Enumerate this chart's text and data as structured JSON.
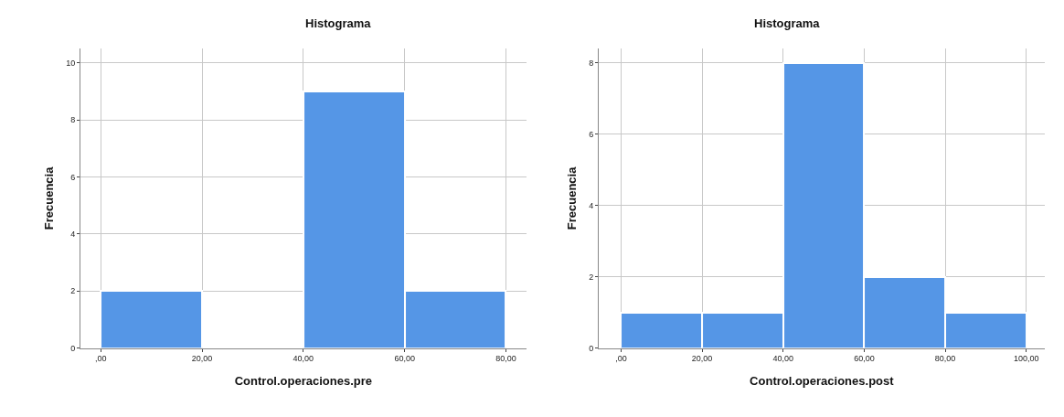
{
  "chart_data": [
    {
      "type": "histogram",
      "title": "Histograma",
      "xlabel": "Control.operaciones.pre",
      "ylabel": "Frecuencia",
      "bins": [
        0,
        20,
        40,
        60,
        80
      ],
      "values": [
        2,
        0,
        9,
        2
      ],
      "color": "#5596e6",
      "xlim": [
        -4,
        84
      ],
      "ylim": [
        0,
        10.5
      ],
      "xticks": [
        {
          "value": 0,
          "label": ",00"
        },
        {
          "value": 20,
          "label": "20,00"
        },
        {
          "value": 40,
          "label": "40,00"
        },
        {
          "value": 60,
          "label": "60,00"
        },
        {
          "value": 80,
          "label": "80,00"
        }
      ],
      "yticks": [
        0,
        2,
        4,
        6,
        8,
        10
      ],
      "grid": true
    },
    {
      "type": "histogram",
      "title": "Histograma",
      "xlabel": "Control.operaciones.post",
      "ylabel": "Frecuencia",
      "bins": [
        0,
        20,
        40,
        60,
        80,
        100
      ],
      "values": [
        1,
        1,
        8,
        2,
        1
      ],
      "color": "#5596e6",
      "xlim": [
        -5.5,
        104.5
      ],
      "ylim": [
        0,
        8.4
      ],
      "xticks": [
        {
          "value": 0,
          "label": ",00"
        },
        {
          "value": 20,
          "label": "20,00"
        },
        {
          "value": 40,
          "label": "40,00"
        },
        {
          "value": 60,
          "label": "60,00"
        },
        {
          "value": 80,
          "label": "80,00"
        },
        {
          "value": 100,
          "label": "100,00"
        }
      ],
      "yticks": [
        0,
        2,
        4,
        6,
        8
      ],
      "grid": true
    }
  ]
}
